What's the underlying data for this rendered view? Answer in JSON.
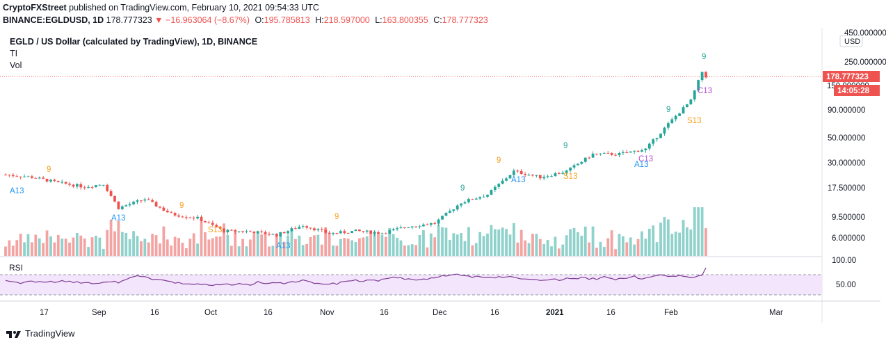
{
  "header": {
    "publisher": "CryptoFXStreet",
    "published_text": "published on TradingView.com, February 10, 2021 09:54:33 UTC",
    "symbol": "BINANCE:EGLDUSD, 1D",
    "last": "178.777323",
    "change_arrow": "▼",
    "change": "−16.963064 (−8.67%)",
    "o_label": "O:",
    "o": "195.785813",
    "h_label": "H:",
    "h": "218.597000",
    "l_label": "L:",
    "l": "163.800355",
    "c_label": "C:",
    "c": "178.777323"
  },
  "legend": {
    "title": "EGLD / US Dollar (calculated by TradingView), 1D, BINANCE",
    "indicator_1": "TI",
    "indicator_2": "Vol"
  },
  "price_axis": {
    "ticks": [
      "450.000000",
      "250.000000",
      "150.000000",
      "90.000000",
      "50.000000",
      "30.000000",
      "17.500000",
      "9.500000",
      "6.000000"
    ],
    "currency": "USD",
    "last_price": "178.777323",
    "countdown": "14:05:28"
  },
  "rsi_pane": {
    "label": "RSI",
    "ticks": [
      "100.00",
      "50.00"
    ]
  },
  "time_axis": [
    "17",
    "Sep",
    "16",
    "Oct",
    "16",
    "Nov",
    "16",
    "Dec",
    "16",
    "2021",
    "16",
    "Feb",
    "Mar"
  ],
  "td_labels": [
    "9",
    "A13",
    "A13",
    "9",
    "S13",
    "9",
    "A13",
    "9",
    "9",
    "A13",
    "9",
    "S13",
    "C13",
    "A13",
    "9",
    "S13",
    "9",
    "C13"
  ],
  "footer": {
    "brand": "TradingView"
  },
  "colors": {
    "up": "#26a69a",
    "down": "#ef5350",
    "vol_up": "#8fd1cb",
    "vol_down": "#f4a3a3",
    "rsi_line": "#7e3a95",
    "rsi_band": "#f3e5fb",
    "td_green": "#26a69a",
    "td_orange": "#f6a120",
    "td_blue": "#2196f3",
    "td_purple": "#b44fd6"
  },
  "chart_data": {
    "type": "candlestick",
    "title": "EGLD / US Dollar (calculated by TradingView), 1D, BINANCE",
    "y_scale": "log",
    "ylim": [
      5.0,
      470.0
    ],
    "x_range": [
      "2020-08-08",
      "2021-03-10"
    ],
    "grid": false,
    "series": [
      {
        "name": "EGLDUSD",
        "values": [
          {
            "date": "2020-08-08",
            "close": 25.2
          },
          {
            "date": "2020-08-15",
            "close": 24.0
          },
          {
            "date": "2020-08-22",
            "close": 21.5
          },
          {
            "date": "2020-08-29",
            "close": 19.8
          },
          {
            "date": "2020-09-03",
            "close": 21.0
          },
          {
            "date": "2020-09-07",
            "close": 13.0
          },
          {
            "date": "2020-09-14",
            "close": 15.5
          },
          {
            "date": "2020-09-21",
            "close": 11.5
          },
          {
            "date": "2020-09-28",
            "close": 10.6
          },
          {
            "date": "2020-10-05",
            "close": 8.2
          },
          {
            "date": "2020-10-12",
            "close": 8.1
          },
          {
            "date": "2020-10-19",
            "close": 7.6
          },
          {
            "date": "2020-10-26",
            "close": 9.2
          },
          {
            "date": "2020-11-02",
            "close": 7.8
          },
          {
            "date": "2020-11-09",
            "close": 8.2
          },
          {
            "date": "2020-11-16",
            "close": 7.9
          },
          {
            "date": "2020-11-23",
            "close": 9.0
          },
          {
            "date": "2020-11-30",
            "close": 9.6
          },
          {
            "date": "2020-12-07",
            "close": 14.5
          },
          {
            "date": "2020-12-14",
            "close": 17.0
          },
          {
            "date": "2020-12-21",
            "close": 27.0
          },
          {
            "date": "2020-12-28",
            "close": 24.0
          },
          {
            "date": "2021-01-04",
            "close": 27.0
          },
          {
            "date": "2021-01-11",
            "close": 38.0
          },
          {
            "date": "2021-01-18",
            "close": 38.0
          },
          {
            "date": "2021-01-25",
            "close": 42.0
          },
          {
            "date": "2021-02-01",
            "close": 75.0
          },
          {
            "date": "2021-02-06",
            "close": 110.0
          },
          {
            "date": "2021-02-09",
            "close": 195.8
          },
          {
            "date": "2021-02-10",
            "close": 178.78
          }
        ]
      }
    ],
    "rsi": {
      "range": [
        0,
        100
      ],
      "levels": [
        30,
        70
      ],
      "last": 78
    }
  }
}
